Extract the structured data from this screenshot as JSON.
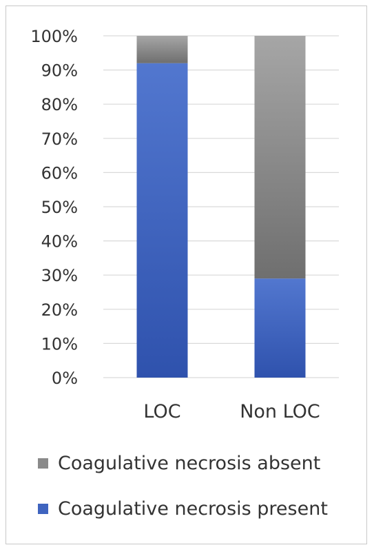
{
  "chart_data": {
    "type": "bar",
    "stacked": true,
    "normalized": true,
    "categories": [
      "LOC",
      "Non LOC"
    ],
    "series": [
      {
        "name": "Coagulative necrosis present",
        "values": [
          92,
          29
        ],
        "color": "#3f64bf"
      },
      {
        "name": "Coagulative necrosis absent",
        "values": [
          8,
          71
        ],
        "color": "#8a8a8a"
      }
    ],
    "y_ticks": [
      "0%",
      "10%",
      "20%",
      "30%",
      "40%",
      "50%",
      "60%",
      "70%",
      "80%",
      "90%",
      "100%"
    ],
    "ylim": [
      0,
      100
    ],
    "grid": true,
    "legend_position": "bottom",
    "legend_order": [
      "Coagulative necrosis absent",
      "Coagulative necrosis present"
    ],
    "title": "",
    "xlabel": "",
    "ylabel": ""
  }
}
